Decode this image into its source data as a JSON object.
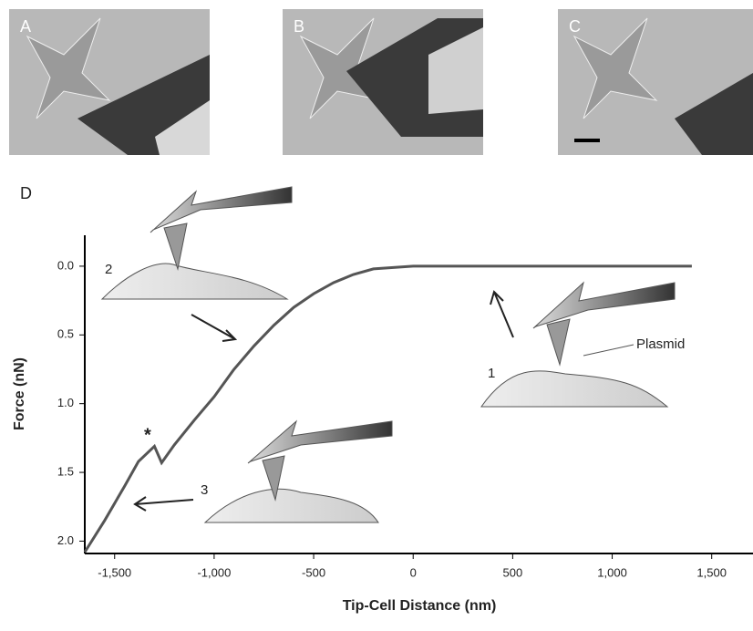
{
  "panels": [
    "A",
    "B",
    "C"
  ],
  "chart_data": {
    "type": "line",
    "title": "D",
    "x_label": "Tip-Cell Distance (nm)",
    "y_label": "Force (nN)",
    "annotations": [
      "1",
      "2",
      "3",
      "*",
      "Plasmid"
    ],
    "xlim": [
      -1650,
      1680
    ],
    "ylim": [
      2.09,
      -0.225
    ],
    "xticks": [
      {
        "value": -1500,
        "label": "-1,500"
      },
      {
        "value": -1000,
        "label": "-1,000"
      },
      {
        "value": -500,
        "label": "-500"
      },
      0,
      500,
      {
        "value": 1000,
        "label": "1,000"
      },
      {
        "value": 1500,
        "label": "1,500"
      }
    ],
    "yticks": [
      {
        "value": 0,
        "label": "0.0"
      },
      {
        "value": 0.5,
        "label": "0.5"
      },
      {
        "value": 1,
        "label": "1.0"
      },
      {
        "value": 1.5,
        "label": "1.5"
      },
      {
        "value": 2,
        "label": "2.0"
      }
    ],
    "series": [
      {
        "color": "#555555",
        "x": [
          -1650,
          -1550,
          -1450,
          -1380,
          -1300,
          -1264,
          -1200,
          -1100,
          -1000,
          -900,
          -800,
          -700,
          -600,
          -500,
          -400,
          -300,
          -200,
          -100,
          0,
          200,
          400,
          600,
          800,
          1000,
          1200,
          1400
        ],
        "values": [
          2.08,
          1.85,
          1.6,
          1.42,
          1.31,
          1.43,
          1.3,
          1.12,
          0.95,
          0.75,
          0.58,
          0.43,
          0.3,
          0.2,
          0.12,
          0.06,
          0.02,
          0.01,
          0,
          0,
          0,
          0,
          0,
          0,
          0,
          0
        ]
      }
    ]
  }
}
